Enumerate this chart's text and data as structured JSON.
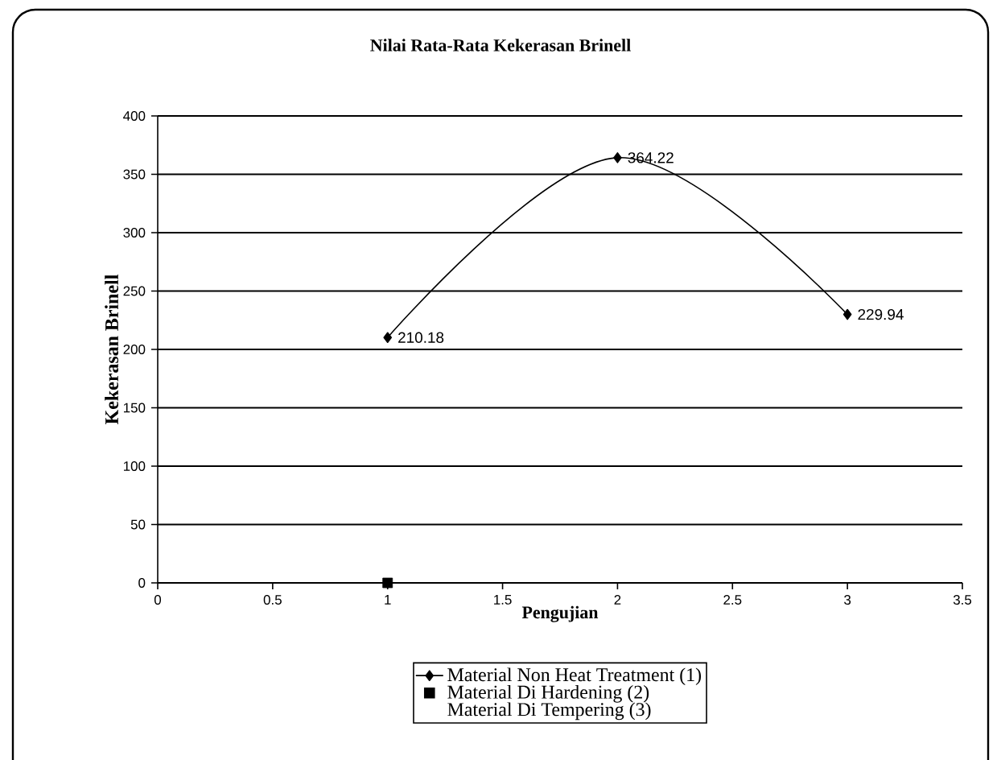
{
  "chart_data": {
    "type": "line",
    "title": "Nilai Rata-Rata Kekerasan Brinell",
    "xlabel": "Pengujian",
    "ylabel": "Kekerasan Brinell",
    "xlim": [
      0,
      3.5
    ],
    "xticks": [
      0,
      0.5,
      1,
      1.5,
      2,
      2.5,
      3,
      3.5
    ],
    "ylim": [
      0,
      400
    ],
    "yticks": [
      0,
      50,
      100,
      150,
      200,
      250,
      300,
      350,
      400
    ],
    "grid": "y",
    "legend": "bottom",
    "series": [
      {
        "name": "Material Non Heat Treatment (1)",
        "color": "#000000",
        "marker": "diamond",
        "x": [
          1,
          2,
          3
        ],
        "values": [
          210.18,
          364.22,
          229.94
        ],
        "value_labels": [
          "210.18",
          "364.22",
          "229.94"
        ]
      },
      {
        "name": "Material Di Hardening (2)",
        "type": "scatter",
        "color": "#000000",
        "marker": "square",
        "x": [
          1
        ],
        "values": [
          0
        ]
      },
      {
        "name": "Material Di Tempering (3)",
        "type": "scatter",
        "marker": "none"
      }
    ]
  }
}
